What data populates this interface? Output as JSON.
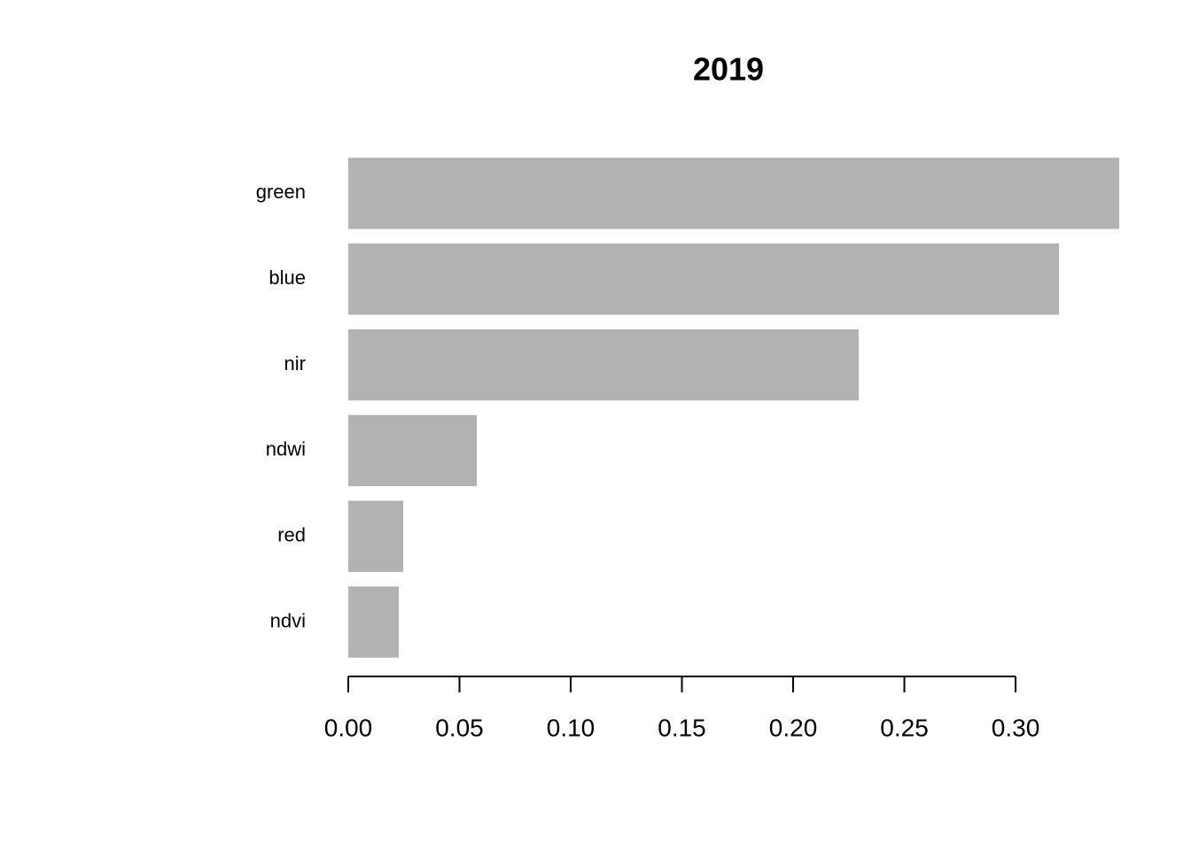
{
  "chart_data": {
    "type": "bar",
    "orientation": "horizontal",
    "title": "2019",
    "categories": [
      "green",
      "blue",
      "nir",
      "ndwi",
      "red",
      "ndvi"
    ],
    "values": [
      0.3466,
      0.3195,
      0.2295,
      0.0578,
      0.0247,
      0.0227
    ],
    "color": "#b2b2b2",
    "xlim": [
      0,
      0.3466
    ],
    "xticks": [
      {
        "value": 0,
        "label": "0.00"
      },
      {
        "value": 0.05,
        "label": "0.05"
      },
      {
        "value": 0.1,
        "label": "0.10"
      },
      {
        "value": 0.15,
        "label": "0.15"
      },
      {
        "value": 0.2,
        "label": "0.20"
      },
      {
        "value": 0.25,
        "label": "0.25"
      },
      {
        "value": 0.3,
        "label": "0.30"
      }
    ]
  }
}
